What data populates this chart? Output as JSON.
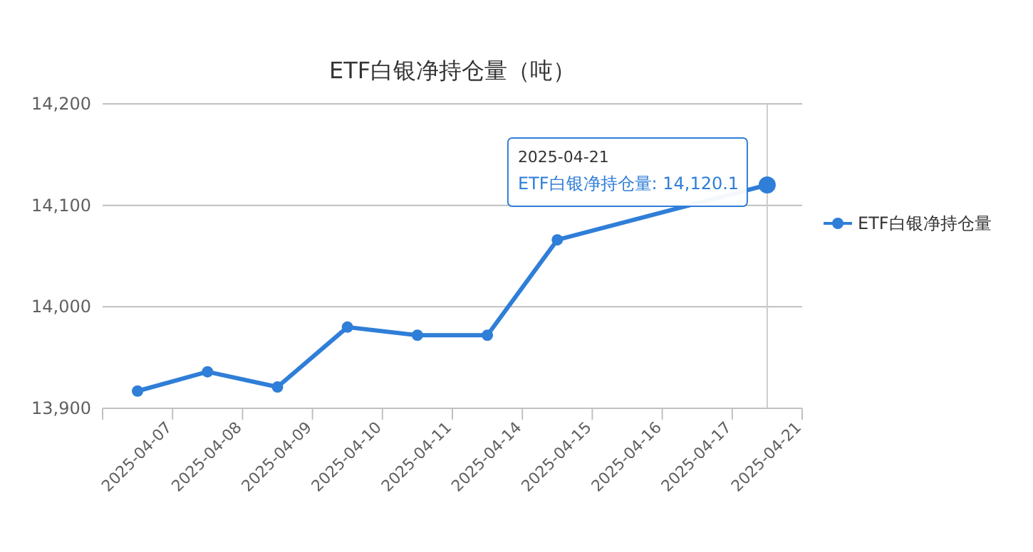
{
  "chart_data": {
    "type": "line",
    "title": "ETF白银净持仓量（吨）",
    "categories": [
      "2025-04-07",
      "2025-04-08",
      "2025-04-09",
      "2025-04-10",
      "2025-04-11",
      "2025-04-14",
      "2025-04-15",
      "2025-04-16",
      "2025-04-17",
      "2025-04-21"
    ],
    "series": [
      {
        "name": "ETF白银净持仓量",
        "color": "#2f7ed8",
        "values": [
          13917,
          13936,
          13921,
          13980,
          13972,
          13972,
          14066,
          null,
          null,
          14120.1
        ]
      }
    ],
    "ylim": [
      13900,
      14200
    ],
    "yticks": [
      {
        "value": 13900,
        "label": "13,900"
      },
      {
        "value": 14000,
        "label": "14,000"
      },
      {
        "value": 14100,
        "label": "14,100"
      },
      {
        "value": 14200,
        "label": "14,200"
      }
    ],
    "grid": "y",
    "legend": "right",
    "marker": "circle",
    "line_style": "solid",
    "ref_lines": [
      {
        "axis": "x",
        "value": "2025-04-21",
        "color": "#cccccc"
      }
    ],
    "annotations": [
      {
        "text": "2025-04-21\nETF白银净持仓量: 14,120.1",
        "x": "2025-04-21",
        "y": 14120.1
      }
    ]
  }
}
